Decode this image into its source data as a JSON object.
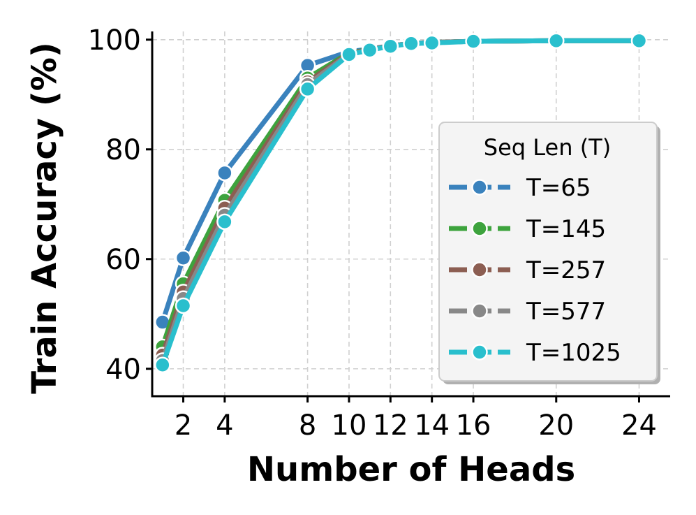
{
  "chart_data": {
    "type": "line",
    "xlabel": "Number of Heads",
    "ylabel": "Train Accuracy (%)",
    "xlim": [
      0.5,
      25.5
    ],
    "ylim": [
      35,
      101.5
    ],
    "xticks": [
      2,
      4,
      8,
      10,
      12,
      14,
      16,
      20,
      24
    ],
    "yticks": [
      40,
      60,
      80,
      100
    ],
    "grid": true,
    "legend": {
      "title": "Seq Len (T)",
      "placement": "center-right"
    },
    "series": [
      {
        "name": "T=65",
        "color": "#3a82bd",
        "x": [
          1,
          2,
          4,
          8,
          10,
          11,
          12,
          13,
          14,
          16,
          20,
          24
        ],
        "y": [
          48.5,
          60.2,
          75.7,
          95.3,
          97.8,
          98.3,
          98.9,
          99.3,
          99.5,
          99.7,
          99.8,
          99.8
        ]
      },
      {
        "name": "T=145",
        "color": "#3da33d",
        "x": [
          1,
          2,
          4,
          8,
          10,
          11,
          12,
          13,
          14,
          16,
          20,
          24
        ],
        "y": [
          44.0,
          55.5,
          70.7,
          93.0,
          97.6,
          98.2,
          98.9,
          99.3,
          99.5,
          99.7,
          99.8,
          99.8
        ]
      },
      {
        "name": "T=257",
        "color": "#8c5e52",
        "x": [
          1,
          2,
          4,
          8,
          10,
          11,
          12,
          13,
          14,
          16,
          20,
          24
        ],
        "y": [
          42.5,
          54.0,
          69.3,
          92.3,
          97.5,
          98.2,
          98.9,
          99.3,
          99.5,
          99.7,
          99.8,
          99.8
        ]
      },
      {
        "name": "T=577",
        "color": "#888888",
        "x": [
          1,
          2,
          4,
          8,
          10,
          11,
          12,
          13,
          14,
          16,
          20,
          24
        ],
        "y": [
          41.5,
          52.8,
          68.0,
          91.8,
          97.4,
          98.1,
          98.9,
          99.3,
          99.5,
          99.7,
          99.8,
          99.8
        ]
      },
      {
        "name": "T=1025",
        "color": "#29bfcd",
        "x": [
          1,
          2,
          4,
          8,
          10,
          11,
          12,
          13,
          14,
          16,
          20,
          24
        ],
        "y": [
          40.7,
          51.5,
          66.8,
          91.0,
          97.3,
          98.1,
          98.8,
          99.3,
          99.4,
          99.7,
          99.8,
          99.8
        ]
      }
    ]
  }
}
